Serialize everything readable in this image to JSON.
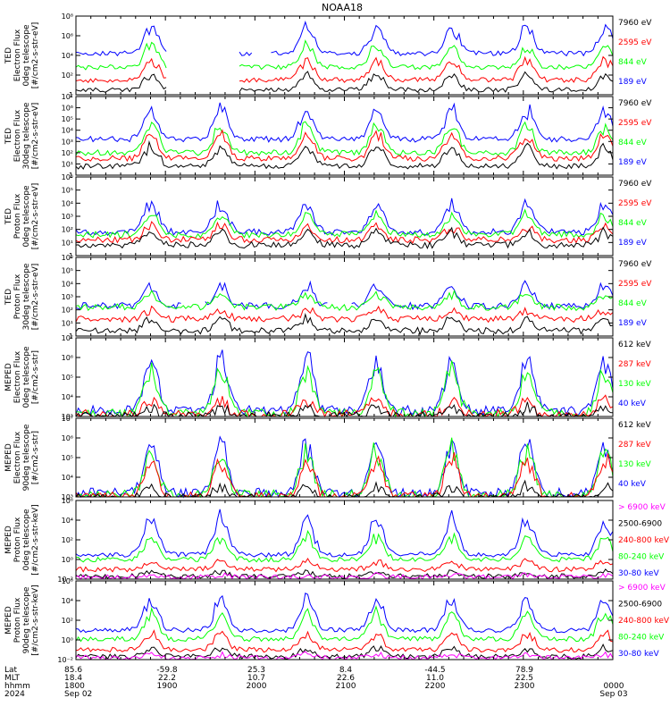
{
  "title": "NOAA18",
  "colors": {
    "black": "#000000",
    "blue": "#0000ff",
    "red": "#ff0000",
    "green": "#00ff00",
    "magenta": "#ff00ff"
  },
  "chart_data": [
    {
      "type": "line",
      "ylabel": [
        "TED",
        "Electron Flux",
        "0deg telescope",
        "[#/cm2-s-str-eV]"
      ],
      "yscale": "log",
      "ylim": [
        1,
        100000000.0
      ],
      "yticks": [
        "1",
        "10²",
        "10⁴",
        "10⁶",
        "10⁸"
      ],
      "legend": [
        {
          "text": "7960 eV",
          "color": "#000000"
        },
        {
          "text": "2595 eV",
          "color": "#ff0000"
        },
        {
          "text": "844 eV",
          "color": "#00ff00"
        },
        {
          "text": "189 eV",
          "color": "#0000ff"
        }
      ],
      "series_profiles": [
        {
          "name": "189 eV",
          "base": 4.2,
          "peak": 7.5,
          "gaps": [
            [
              0.17,
              0.3
            ],
            [
              0.33,
              0.36
            ]
          ]
        },
        {
          "name": "844 eV",
          "base": 2.8,
          "peak": 5.5,
          "gaps": [
            [
              0.17,
              0.3
            ]
          ]
        },
        {
          "name": "2595 eV",
          "base": 1.5,
          "peak": 4.0,
          "gaps": [
            [
              0.17,
              0.3
            ]
          ]
        },
        {
          "name": "7960 eV",
          "base": 0.5,
          "peak": 2.5,
          "gaps": [
            [
              0.17,
              0.3
            ]
          ]
        }
      ]
    },
    {
      "type": "line",
      "ylabel": [
        "TED",
        "Electron Flux",
        "30deg telescope",
        "[#/cm2-s-str-eV]"
      ],
      "yscale": "log",
      "ylim": [
        1,
        10000000.0
      ],
      "yticks": [
        "1",
        "10¹",
        "10²",
        "10³",
        "10⁴",
        "10⁵",
        "10⁶",
        "10⁷"
      ],
      "legend": [
        {
          "text": "7960 eV",
          "color": "#000000"
        },
        {
          "text": "2595 eV",
          "color": "#ff0000"
        },
        {
          "text": "844 eV",
          "color": "#00ff00"
        },
        {
          "text": "189 eV",
          "color": "#0000ff"
        }
      ],
      "series_profiles": [
        {
          "name": "189 eV",
          "base": 3.2,
          "peak": 6.5,
          "gaps": []
        },
        {
          "name": "844 eV",
          "base": 2.0,
          "peak": 5.0,
          "gaps": []
        },
        {
          "name": "2595 eV",
          "base": 1.5,
          "peak": 4.2,
          "gaps": []
        },
        {
          "name": "7960 eV",
          "base": 0.8,
          "peak": 3.0,
          "gaps": []
        }
      ]
    },
    {
      "type": "line",
      "ylabel": [
        "TED",
        "Proton Flux",
        "0deg telescope",
        "[#/cm2-s-str-eV]"
      ],
      "yscale": "log",
      "ylim": [
        1,
        1000000.0
      ],
      "yticks": [
        "1",
        "10¹",
        "10²",
        "10³",
        "10⁴",
        "10⁵",
        "10⁶"
      ],
      "legend": [
        {
          "text": "7960 eV",
          "color": "#000000"
        },
        {
          "text": "2595 eV",
          "color": "#ff0000"
        },
        {
          "text": "844 eV",
          "color": "#00ff00"
        },
        {
          "text": "189 eV",
          "color": "#0000ff"
        }
      ],
      "series_profiles": [
        {
          "name": "189 eV",
          "base": 1.8,
          "peak": 4.5,
          "gaps": []
        },
        {
          "name": "844 eV",
          "base": 1.6,
          "peak": 3.5,
          "gaps": []
        },
        {
          "name": "2595 eV",
          "base": 1.2,
          "peak": 2.5,
          "gaps": []
        },
        {
          "name": "7960 eV",
          "base": 0.8,
          "peak": 2.0,
          "gaps": []
        }
      ]
    },
    {
      "type": "line",
      "ylabel": [
        "TED",
        "Proton Flux",
        "30deg telescope",
        "[#/cm2-s-str-eV]"
      ],
      "yscale": "log",
      "ylim": [
        1,
        1000000.0
      ],
      "yticks": [
        "1",
        "10¹",
        "10²",
        "10³",
        "10⁴",
        "10⁵",
        "10⁶"
      ],
      "legend": [
        {
          "text": "7960 eV",
          "color": "#000000"
        },
        {
          "text": "2595 eV",
          "color": "#ff0000"
        },
        {
          "text": "844 eV",
          "color": "#00ff00"
        },
        {
          "text": "189 eV",
          "color": "#0000ff"
        }
      ],
      "series_profiles": [
        {
          "name": "189 eV",
          "base": 2.3,
          "peak": 4.2,
          "gaps": [
            [
              0.2,
              0.24
            ],
            [
              0.47,
              0.51
            ]
          ]
        },
        {
          "name": "844 eV",
          "base": 2.2,
          "peak": 3.5,
          "gaps": []
        },
        {
          "name": "2595 eV",
          "base": 1.3,
          "peak": 2.2,
          "gaps": []
        },
        {
          "name": "7960 eV",
          "base": 0.4,
          "peak": 1.5,
          "gaps": []
        }
      ]
    },
    {
      "type": "line",
      "ylabel": [
        "MEPED",
        "Electron Flux",
        "0deg telescope",
        "[#/cm2-s-str]"
      ],
      "yscale": "log",
      "ylim": [
        1000.0,
        10000000.0
      ],
      "yticks": [
        "10³",
        "10⁴",
        "10⁵",
        "10⁶",
        "10⁷"
      ],
      "legend": [
        {
          "text": "612 keV",
          "color": "#000000"
        },
        {
          "text": "287 keV",
          "color": "#ff0000"
        },
        {
          "text": "130 keV",
          "color": "#00ff00"
        },
        {
          "text": "40 keV",
          "color": "#0000ff"
        }
      ],
      "series_profiles": [
        {
          "name": "40 keV",
          "base": 3.3,
          "peak": 6.5,
          "gaps": []
        },
        {
          "name": "130 keV",
          "base": 3.15,
          "peak": 5.8,
          "gaps": []
        },
        {
          "name": "287 keV",
          "base": 3.1,
          "peak": 4.0,
          "gaps": []
        },
        {
          "name": "612 keV",
          "base": 3.0,
          "peak": 3.6,
          "gaps": []
        }
      ]
    },
    {
      "type": "line",
      "ylabel": [
        "MEPED",
        "Electron Flux",
        "90deg telescope",
        "[#/cm2-s-str]"
      ],
      "yscale": "log",
      "ylim": [
        1000.0,
        10000000.0
      ],
      "yticks": [
        "10³",
        "10⁴",
        "10⁵",
        "10⁶",
        "10⁷"
      ],
      "legend": [
        {
          "text": "612 keV",
          "color": "#000000"
        },
        {
          "text": "287 keV",
          "color": "#ff0000"
        },
        {
          "text": "130 keV",
          "color": "#00ff00"
        },
        {
          "text": "40 keV",
          "color": "#0000ff"
        }
      ],
      "series_profiles": [
        {
          "name": "40 keV",
          "base": 3.2,
          "peak": 6.2,
          "gaps": []
        },
        {
          "name": "130 keV",
          "base": 3.1,
          "peak": 5.9,
          "gaps": []
        },
        {
          "name": "287 keV",
          "base": 3.0,
          "peak": 5.3,
          "gaps": []
        },
        {
          "name": "612 keV",
          "base": 2.9,
          "peak": 3.7,
          "gaps": []
        }
      ]
    },
    {
      "type": "line",
      "ylabel": [
        "MEPED",
        "Proton Flux",
        "0deg telescope",
        "[#/cm2-s-str-keV]"
      ],
      "yscale": "log",
      "ylim": [
        0.01,
        1000000.0
      ],
      "yticks": [
        "10⁻²",
        "10⁰",
        "10²",
        "10⁴",
        "10⁶"
      ],
      "legend": [
        {
          "text": "> 6900 keV",
          "color": "#ff00ff"
        },
        {
          "text": "2500-6900",
          "color": "#000000"
        },
        {
          "text": "240-800 keV",
          "color": "#ff0000"
        },
        {
          "text": "80-240 keV",
          "color": "#00ff00"
        },
        {
          "text": "30-80 keV",
          "color": "#0000ff"
        }
      ],
      "series_profiles": [
        {
          "name": "30-80 keV",
          "base": 0.5,
          "peak": 5.0,
          "gaps": []
        },
        {
          "name": "80-240 keV",
          "base": 0.0,
          "peak": 2.8,
          "gaps": []
        },
        {
          "name": "240-800 keV",
          "base": -1.0,
          "peak": 0.0,
          "gaps": []
        },
        {
          "name": "2500-6900",
          "base": -1.7,
          "peak": -1.2,
          "gaps": []
        },
        {
          "name": "> 6900 keV",
          "base": -1.8,
          "peak": -1.5,
          "gaps": []
        }
      ]
    },
    {
      "type": "line",
      "ylabel": [
        "MEPED",
        "Proton Flux",
        "90deg telescope",
        "[#/cm2-s-str-keV]"
      ],
      "yscale": "log",
      "ylim": [
        0.01,
        1000000.0
      ],
      "yticks": [
        "10⁻²",
        "10⁰",
        "10²",
        "10⁴",
        "10⁶"
      ],
      "legend": [
        {
          "text": "> 6900 keV",
          "color": "#ff00ff"
        },
        {
          "text": "2500-6900",
          "color": "#000000"
        },
        {
          "text": "240-800 keV",
          "color": "#ff0000"
        },
        {
          "text": "80-240 keV",
          "color": "#00ff00"
        },
        {
          "text": "30-80 keV",
          "color": "#0000ff"
        }
      ],
      "series_profiles": [
        {
          "name": "30-80 keV",
          "base": 1.0,
          "peak": 4.8,
          "gaps": []
        },
        {
          "name": "80-240 keV",
          "base": 0.1,
          "peak": 3.2,
          "gaps": []
        },
        {
          "name": "240-800 keV",
          "base": -1.0,
          "peak": 1.0,
          "gaps": []
        },
        {
          "name": "2500-6900",
          "base": -1.7,
          "peak": -0.6,
          "gaps": []
        },
        {
          "name": "> 6900 keV",
          "base": -1.8,
          "peak": -1.4,
          "gaps": []
        }
      ]
    }
  ],
  "x_axis": {
    "row_labels": [
      "Lat",
      "MLT",
      "hhmm",
      "2024"
    ],
    "columns": [
      {
        "lat": "85.6",
        "mlt": "18.4",
        "hhmm": "1800",
        "date": "Sep 02"
      },
      {
        "lat": "-59.8",
        "mlt": "22.2",
        "hhmm": "1900",
        "date": ""
      },
      {
        "lat": "25.3",
        "mlt": "10.7",
        "hhmm": "2000",
        "date": ""
      },
      {
        "lat": "8.4",
        "mlt": "22.6",
        "hhmm": "2100",
        "date": ""
      },
      {
        "lat": "-44.5",
        "mlt": "11.0",
        "hhmm": "2200",
        "date": ""
      },
      {
        "lat": "78.9",
        "mlt": "22.5",
        "hhmm": "2300",
        "date": ""
      },
      {
        "lat": "",
        "mlt": "",
        "hhmm": "0000",
        "date": "Sep 03"
      }
    ]
  }
}
